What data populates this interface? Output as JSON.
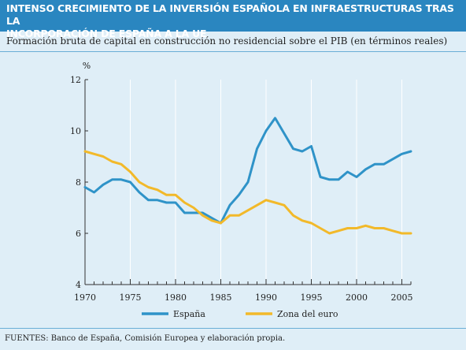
{
  "header": {
    "title_line1": "INTENSO CRECIMIENTO DE LA INVERSIÓN ESPAÑOLA EN INFRAESTRUCTURAS TRAS LA",
    "title_line2": "INCORPORACIÓN DE ESPAÑA A LA UE",
    "subtitle": "Formación bruta de capital en construcción no residencial sobre el PIB (en términos reales)"
  },
  "footer": {
    "source": "FUENTES: Banco de España, Comisión Europea y elaboración propia."
  },
  "colors": {
    "header_bg": "#2a86c0",
    "background": "#dfeef7",
    "espana": "#2f93c8",
    "zona_euro": "#f2b92a",
    "axis": "#333333",
    "grid": "#ffffff"
  },
  "chart_data": {
    "type": "line",
    "ylabel": "%",
    "xlabel": "",
    "ylim": [
      4,
      12
    ],
    "xlim": [
      1970,
      2006
    ],
    "yticks": [
      "4",
      "6",
      "8",
      "10",
      "12"
    ],
    "xticks": [
      "1970",
      "1975",
      "1980",
      "1985",
      "1990",
      "1995",
      "2000",
      "2005"
    ],
    "x": [
      1970,
      1971,
      1972,
      1973,
      1974,
      1975,
      1976,
      1977,
      1978,
      1979,
      1980,
      1981,
      1982,
      1983,
      1984,
      1985,
      1986,
      1987,
      1988,
      1989,
      1990,
      1991,
      1992,
      1993,
      1994,
      1995,
      1996,
      1997,
      1998,
      1999,
      2000,
      2001,
      2002,
      2003,
      2004,
      2005,
      2006
    ],
    "series": [
      {
        "name": "España",
        "color": "#2f93c8",
        "values": [
          7.8,
          7.6,
          7.9,
          8.1,
          8.1,
          8.0,
          7.6,
          7.3,
          7.3,
          7.2,
          7.2,
          6.8,
          6.8,
          6.8,
          6.6,
          6.4,
          7.1,
          7.5,
          8.0,
          9.3,
          10.0,
          10.5,
          9.9,
          9.3,
          9.2,
          9.4,
          8.2,
          8.1,
          8.1,
          8.4,
          8.2,
          8.5,
          8.7,
          8.7,
          8.9,
          9.1,
          9.2
        ]
      },
      {
        "name": "Zona del euro",
        "color": "#f2b92a",
        "values": [
          9.2,
          9.1,
          9.0,
          8.8,
          8.7,
          8.4,
          8.0,
          7.8,
          7.7,
          7.5,
          7.5,
          7.2,
          7.0,
          6.7,
          6.5,
          6.4,
          6.7,
          6.7,
          6.9,
          7.1,
          7.3,
          7.2,
          7.1,
          6.7,
          6.5,
          6.4,
          6.2,
          6.0,
          6.1,
          6.2,
          6.2,
          6.3,
          6.2,
          6.2,
          6.1,
          6.0,
          6.0
        ]
      }
    ],
    "legend": "bottom",
    "grid": "vertical lines at labeled years"
  }
}
